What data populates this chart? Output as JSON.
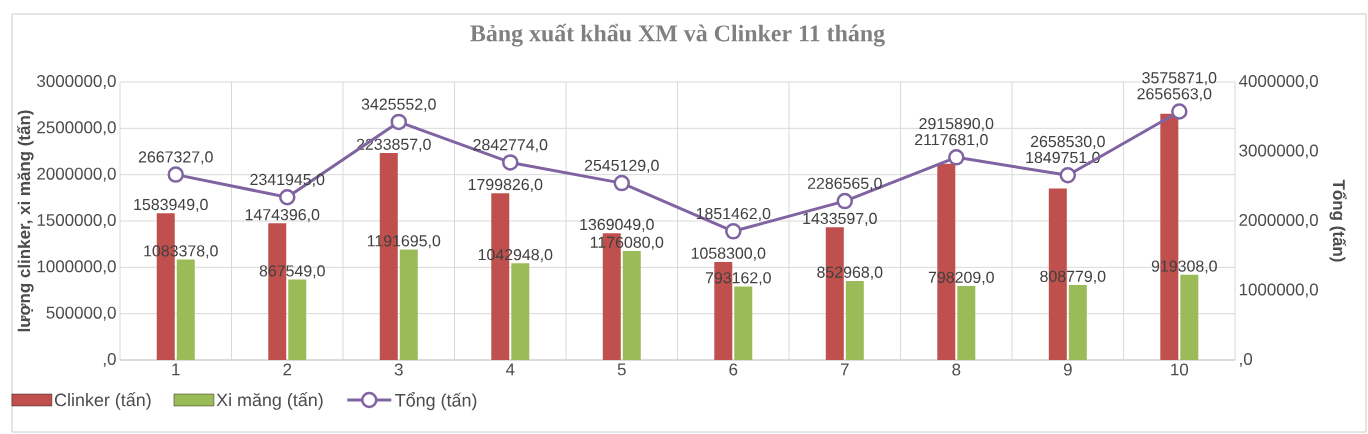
{
  "chart_data": {
    "type": "bar",
    "title": "Bảng xuất khẩu XM và Clinker 11 tháng",
    "ylabel": "lượng clinker, xi măng (tấn)",
    "y2label": "Tổng (tấn)",
    "categories": [
      "1",
      "2",
      "3",
      "4",
      "5",
      "6",
      "7",
      "8",
      "9",
      "10"
    ],
    "series": [
      {
        "name": "Clinker (tấn)",
        "color": "#c0504d",
        "values": [
          1583949,
          1474396,
          2233857,
          1799826,
          1369049,
          1058300,
          1433597,
          2117681,
          1849751,
          2656563
        ],
        "value_labels": [
          "1583949,0",
          "1474396,0",
          "2233857,0",
          "1799826,0",
          "1369049,0",
          "1058300,0",
          "1433597,0",
          "2117681,0",
          "1849751,0",
          "2656563,0"
        ]
      },
      {
        "name": "Xi măng (tấn)",
        "color": "#9bbb59",
        "values": [
          1083378,
          867549,
          1191695,
          1042948,
          1176080,
          793162,
          852968,
          798209,
          808779,
          919308
        ],
        "value_labels": [
          "1083378,0",
          "867549,0",
          "1191695,0",
          "1042948,0",
          "1176080,0",
          "793162,0",
          "852968,0",
          "798209,0",
          "808779,0",
          "919308,0"
        ]
      },
      {
        "name": "Tổng (tấn)",
        "type": "line",
        "axis": "y2",
        "marker": "circle",
        "color": "#8064a2",
        "values": [
          2667327,
          2341945,
          3425552,
          2842774,
          2545129,
          1851462,
          2286565,
          2915890,
          2658530,
          3575871
        ],
        "value_labels": [
          "2667327,0",
          "2341945,0",
          "3425552,0",
          "2842774,0",
          "2545129,0",
          "1851462,0",
          "2286565,0",
          "2915890,0",
          "2658530,0",
          "3575871,0"
        ]
      }
    ],
    "ylim": [
      0,
      3000000
    ],
    "yticks": [
      {
        "value": 0,
        "label": ",0"
      },
      {
        "value": 500000,
        "label": "500000,0"
      },
      {
        "value": 1000000,
        "label": "1000000,0"
      },
      {
        "value": 1500000,
        "label": "1500000,0"
      },
      {
        "value": 2000000,
        "label": "2000000,0"
      },
      {
        "value": 2500000,
        "label": "2500000,0"
      },
      {
        "value": 3000000,
        "label": "3000000,0"
      }
    ],
    "y2lim": [
      0,
      4000000
    ],
    "y2ticks": [
      {
        "value": 0,
        "label": ",0"
      },
      {
        "value": 1000000,
        "label": "1000000,0"
      },
      {
        "value": 2000000,
        "label": "2000000,0"
      },
      {
        "value": 3000000,
        "label": "3000000,0"
      },
      {
        "value": 4000000,
        "label": "4000000,0"
      }
    ],
    "grid": true,
    "legend": "bottom left"
  }
}
